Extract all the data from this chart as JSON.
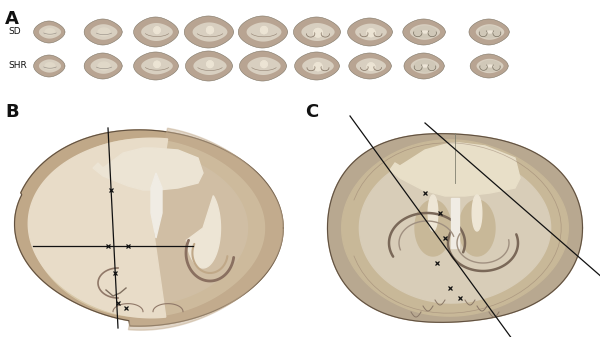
{
  "background_color": "#ffffff",
  "panel_A_label": "A",
  "panel_B_label": "B",
  "panel_C_label": "C",
  "SD_label": "SD",
  "SHR_label": "SHR",
  "fig_width": 6.0,
  "fig_height": 3.37,
  "cortex_dark": "#a08878",
  "cortex_mid": "#c0a890",
  "cortex_light": "#d8c8b0",
  "white_matter": "#e8e0d0",
  "ventricle": "#f0ece4",
  "hippocampus_dark": "#786050",
  "line_color": "#111111",
  "label_color": "#111111"
}
